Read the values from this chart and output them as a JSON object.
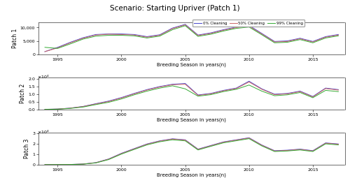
{
  "title": "Scenario: Starting Upriver (Patch 1)",
  "xlabel": "Breeding Season in years(n)",
  "years": [
    1994,
    1995,
    1996,
    1997,
    1998,
    1999,
    2000,
    2001,
    2002,
    2003,
    2004,
    2005,
    2006,
    2007,
    2008,
    2009,
    2010,
    2011,
    2012,
    2013,
    2014,
    2015,
    2016,
    2017
  ],
  "patch1": {
    "label": "Patch 1",
    "c0": [
      997,
      2600,
      4500,
      6200,
      7400,
      7600,
      7600,
      7400,
      6600,
      7300,
      9800,
      11200,
      7200,
      8000,
      9200,
      10200,
      10800,
      7800,
      4800,
      5000,
      6000,
      4800,
      6600,
      7400
    ],
    "c50": [
      997,
      2400,
      4300,
      6000,
      7200,
      7500,
      7400,
      7200,
      6400,
      7100,
      9600,
      11000,
      7000,
      7800,
      9000,
      10000,
      10500,
      7600,
      4600,
      4800,
      5800,
      4600,
      6400,
      7200
    ],
    "c99": [
      2600,
      2200,
      3900,
      5700,
      6800,
      7100,
      7100,
      6900,
      6100,
      6800,
      9200,
      10700,
      6700,
      7500,
      8700,
      9700,
      10200,
      7300,
      4300,
      4500,
      5500,
      4300,
      6100,
      6900
    ]
  },
  "patch2": {
    "label": "Patch 2",
    "c0": [
      100,
      300,
      900,
      2000,
      3800,
      5500,
      7800,
      10500,
      13000,
      15000,
      16500,
      17000,
      9500,
      10500,
      12500,
      14000,
      18500,
      13500,
      10000,
      10500,
      12000,
      8500,
      14000,
      13000
    ],
    "c50": [
      90,
      280,
      850,
      1900,
      3600,
      5200,
      7500,
      10200,
      12700,
      14700,
      16200,
      16500,
      9200,
      10200,
      12200,
      13700,
      18000,
      13200,
      9700,
      10200,
      11700,
      8200,
      13700,
      12700
    ],
    "c99": [
      60,
      200,
      700,
      1600,
      3200,
      4700,
      6900,
      9600,
      12000,
      14000,
      15500,
      13500,
      8700,
      9700,
      11700,
      13200,
      16000,
      12000,
      9000,
      9600,
      11100,
      7700,
      12500,
      11700
    ]
  },
  "patch3": {
    "label": "Patch 3",
    "c0": [
      50,
      100,
      200,
      600,
      2000,
      5500,
      11000,
      15500,
      20000,
      23000,
      25000,
      24000,
      15000,
      18500,
      22000,
      24000,
      26000,
      19000,
      13500,
      14000,
      15000,
      13500,
      21000,
      20000
    ],
    "c50": [
      40,
      90,
      180,
      570,
      1900,
      5300,
      10700,
      15200,
      19700,
      22700,
      24700,
      23700,
      14700,
      18200,
      21700,
      23700,
      25700,
      18700,
      13200,
      13700,
      14700,
      13200,
      20700,
      19700
    ],
    "c99": [
      20,
      60,
      140,
      500,
      1700,
      4900,
      10200,
      14700,
      19100,
      22100,
      24000,
      23000,
      14200,
      17700,
      21100,
      23100,
      25100,
      18100,
      12700,
      13200,
      14200,
      12700,
      20100,
      19100
    ]
  },
  "color0": "#4444cc",
  "color50": "#cc6666",
  "color99": "#33aa33",
  "legend_labels": [
    "0% Cleaning",
    "50% Cleaning",
    "99% Cleaning"
  ],
  "p1_ylim": [
    0,
    12000
  ],
  "p1_yticks": [
    0,
    5000,
    10000
  ],
  "p2_ylim": [
    0,
    20000
  ],
  "p2_yticks_scaled": [
    0,
    0.5,
    1.0,
    1.5,
    2.0
  ],
  "p3_ylim": [
    0,
    30000
  ],
  "p3_yticks_scaled": [
    0,
    1.0,
    2.0,
    3.0
  ]
}
